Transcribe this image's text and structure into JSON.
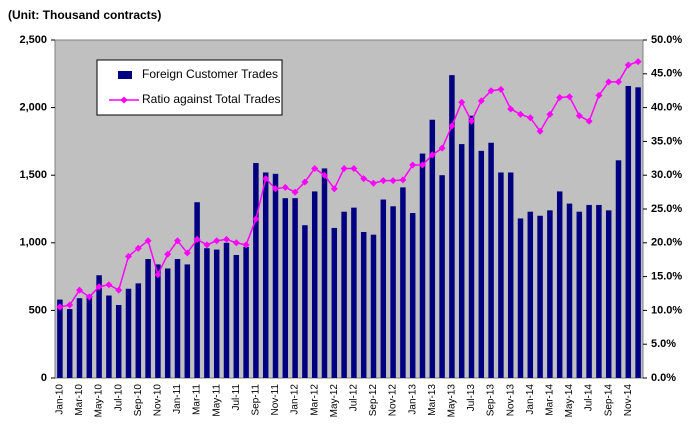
{
  "chart_data": {
    "type": "bar-line",
    "subtitle": "(Unit: Thousand contracts)",
    "categories": [
      "Jan-10",
      null,
      "Mar-10",
      null,
      "May-10",
      null,
      "Jul-10",
      null,
      "Sep-10",
      null,
      "Nov-10",
      null,
      "Jan-11",
      null,
      "Mar-11",
      null,
      "May-11",
      null,
      "Jul-11",
      null,
      "Sep-11",
      null,
      "Nov-11",
      null,
      "Jan-12",
      null,
      "Mar-12",
      null,
      "May-12",
      null,
      "Jul-12",
      null,
      "Sep-12",
      null,
      "Nov-12",
      null,
      "Jan-13",
      null,
      "Mar-13",
      null,
      "May-13",
      null,
      "Jul-13",
      null,
      "Sep-13",
      null,
      "Nov-13",
      null,
      "Jan-14",
      null,
      "Mar-14",
      null,
      "May-14",
      null,
      "Jul-14",
      null,
      "Sep-14",
      null,
      "Nov-14",
      null
    ],
    "series": [
      {
        "name": "Foreign Customer Trades",
        "color": "#000080",
        "kind": "bar",
        "values": [
          580,
          510,
          590,
          610,
          760,
          610,
          540,
          660,
          700,
          880,
          840,
          810,
          880,
          840,
          1300,
          960,
          950,
          1000,
          910,
          970,
          1590,
          1520,
          1510,
          1330,
          1330,
          1130,
          1380,
          1550,
          1110,
          1230,
          1260,
          1080,
          1060,
          1320,
          1270,
          1410,
          1220,
          1660,
          1910,
          1500,
          2240,
          1730,
          1940,
          1680,
          1740,
          1520,
          1520,
          1180,
          1230,
          1200,
          1240,
          1380,
          1290,
          1230,
          1280,
          1280,
          1240,
          1610,
          2160,
          2150
        ]
      },
      {
        "name": "Ratio against Total Trades",
        "color": "#ff00ff",
        "kind": "line",
        "axis": "y2",
        "values": [
          10.5,
          10.8,
          13.0,
          12.0,
          13.5,
          13.8,
          13.0,
          18.0,
          19.2,
          20.3,
          15.3,
          18.3,
          20.3,
          18.5,
          20.5,
          19.7,
          20.3,
          20.5,
          20.0,
          19.7,
          23.5,
          29.5,
          28.0,
          28.2,
          27.5,
          29.0,
          31.0,
          30.0,
          28.0,
          31.0,
          31.0,
          29.5,
          28.8,
          29.2,
          29.2,
          29.3,
          31.5,
          31.5,
          33.0,
          34.0,
          37.3,
          40.8,
          38.0,
          41.0,
          42.5,
          42.7,
          39.8,
          39.0,
          38.5,
          36.5,
          39.0,
          41.5,
          41.6,
          38.8,
          38.0,
          41.8,
          43.8,
          43.8,
          46.3,
          46.8
        ]
      }
    ],
    "ylim": [
      0,
      2500
    ],
    "yticks": [
      0,
      500,
      {
        "value": 1000,
        "label": "1,000"
      },
      {
        "value": 1500,
        "label": "1,500"
      },
      {
        "value": 2000,
        "label": "2,000"
      },
      {
        "value": 2500,
        "label": "2,500"
      }
    ],
    "y2lim": [
      0,
      50
    ],
    "y2ticks": [
      {
        "value": 0,
        "label": "0.0%"
      },
      {
        "value": 5,
        "label": "5.0%"
      },
      {
        "value": 10,
        "label": "10.0%"
      },
      {
        "value": 15,
        "label": "15.0%"
      },
      {
        "value": 20,
        "label": "20.0%"
      },
      {
        "value": 25,
        "label": "25.0%"
      },
      {
        "value": 30,
        "label": "30.0%"
      },
      {
        "value": 35,
        "label": "35.0%"
      },
      {
        "value": 40,
        "label": "40.0%"
      },
      {
        "value": 45,
        "label": "45.0%"
      },
      {
        "value": 50,
        "label": "50.0%"
      }
    ],
    "plot_background": "#c0c0c0",
    "legend": "upper left"
  }
}
